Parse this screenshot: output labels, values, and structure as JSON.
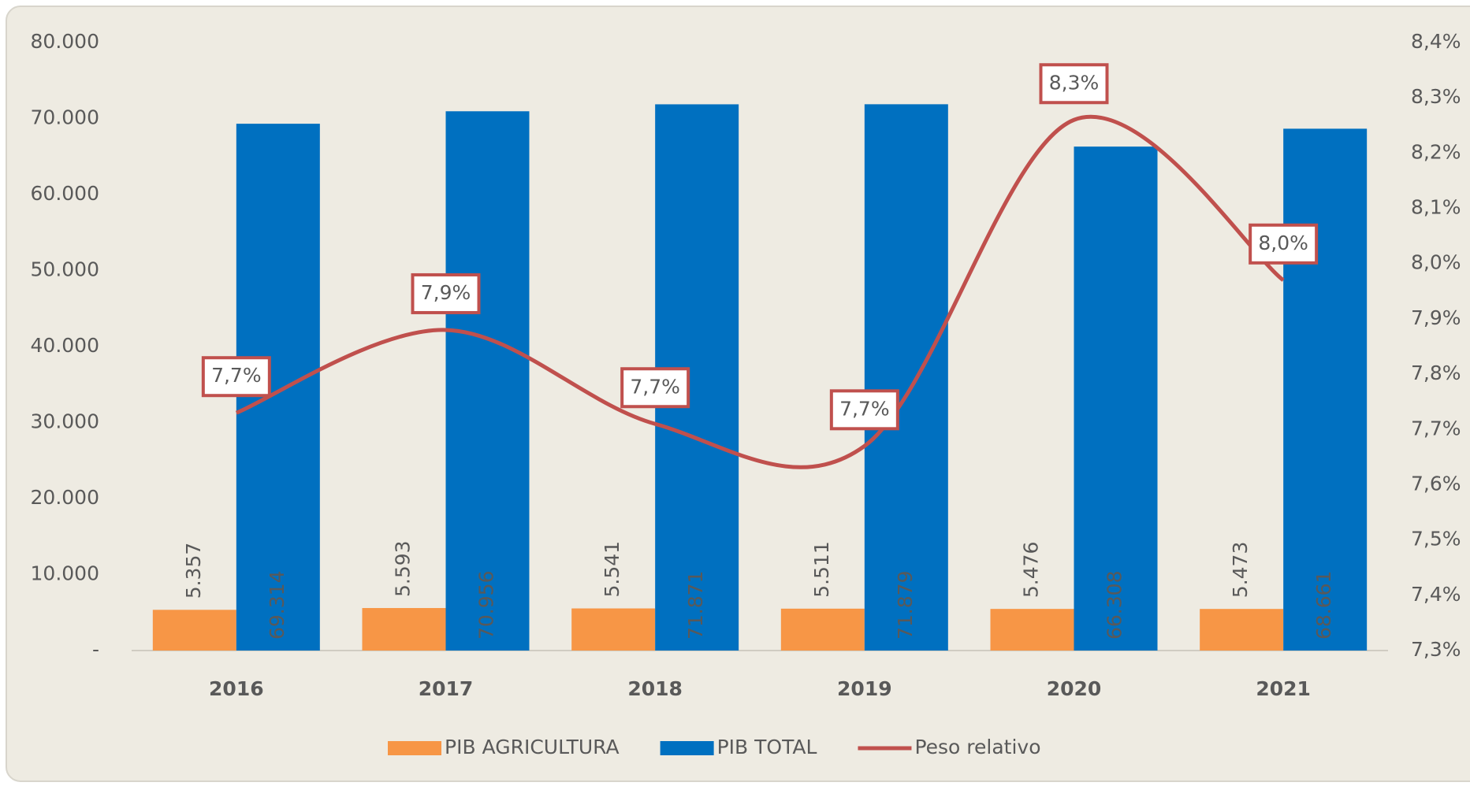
{
  "chart_data": {
    "type": "bar",
    "categories": [
      "2016",
      "2017",
      "2018",
      "2019",
      "2020",
      "2021"
    ],
    "series": [
      {
        "name": "PIB AGRICULTURA",
        "color": "#f79646",
        "values": [
          5357,
          5593,
          5541,
          5511,
          5476,
          5473
        ],
        "value_labels": [
          "5.357",
          "5.593",
          "5.541",
          "5.511",
          "5.476",
          "5.473"
        ]
      },
      {
        "name": "PIB TOTAL",
        "color": "#0070c0",
        "values": [
          69314,
          70956,
          71871,
          71879,
          66308,
          68661
        ],
        "value_labels": [
          "69.314",
          "70.956",
          "71.871",
          "71.879",
          "66.308",
          "68.661"
        ]
      },
      {
        "name": "Peso relativo",
        "type": "line",
        "axis": "y2",
        "color": "#c0504d",
        "values": [
          7.73,
          7.88,
          7.71,
          7.67,
          8.26,
          7.97
        ],
        "value_labels": [
          "7,7%",
          "7,9%",
          "7,7%",
          "7,7%",
          "8,3%",
          "8,0%"
        ]
      }
    ],
    "ylim": [
      0,
      80000
    ],
    "yticks": [
      {
        "value": 0,
        "label": "-"
      },
      {
        "value": 10000,
        "label": "10.000"
      },
      {
        "value": 20000,
        "label": "20.000"
      },
      {
        "value": 30000,
        "label": "30.000"
      },
      {
        "value": 40000,
        "label": "40.000"
      },
      {
        "value": 50000,
        "label": "50.000"
      },
      {
        "value": 60000,
        "label": "60.000"
      },
      {
        "value": 70000,
        "label": "70.000"
      },
      {
        "value": 80000,
        "label": "80.000"
      }
    ],
    "y2lim": [
      7.3,
      8.4
    ],
    "y2ticks": [
      {
        "value": 7.3,
        "label": "7,3%"
      },
      {
        "value": 7.4,
        "label": "7,4%"
      },
      {
        "value": 7.5,
        "label": "7,5%"
      },
      {
        "value": 7.6,
        "label": "7,6%"
      },
      {
        "value": 7.7,
        "label": "7,7%"
      },
      {
        "value": 7.8,
        "label": "7,8%"
      },
      {
        "value": 7.9,
        "label": "7,9%"
      },
      {
        "value": 8.0,
        "label": "8,0%"
      },
      {
        "value": 8.1,
        "label": "8,1%"
      },
      {
        "value": 8.2,
        "label": "8,2%"
      },
      {
        "value": 8.3,
        "label": "8,3%"
      },
      {
        "value": 8.4,
        "label": "8,4%"
      }
    ],
    "legend": "bottom",
    "grid": false
  }
}
